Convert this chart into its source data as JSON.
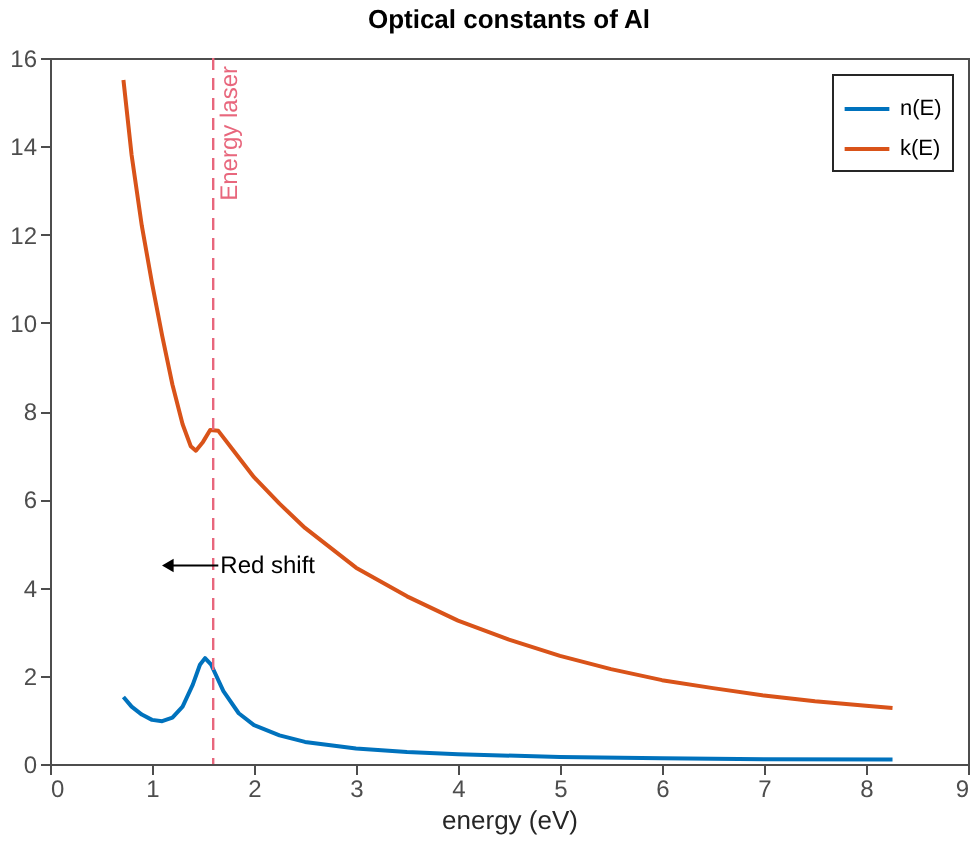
{
  "chart_data": {
    "type": "line",
    "title": "Optical constants of Al",
    "xlabel": "energy (eV)",
    "xlim": [
      0,
      9
    ],
    "xticks": [
      0,
      1,
      2,
      3,
      4,
      5,
      6,
      7,
      8,
      9
    ],
    "ylim": [
      0,
      16
    ],
    "yticks": [
      0,
      2,
      4,
      6,
      8,
      10,
      12,
      14,
      16
    ],
    "grid": false,
    "legend": "top right",
    "marker": "none",
    "line_style": "solid",
    "series": [
      {
        "name": "n(E)",
        "color": "#0072bd",
        "x": [
          0.72,
          0.8,
          0.9,
          1.0,
          1.1,
          1.2,
          1.3,
          1.4,
          1.47,
          1.52,
          1.58,
          1.7,
          1.85,
          2.0,
          2.25,
          2.5,
          3.0,
          3.5,
          4.0,
          5.0,
          6.0,
          7.0,
          8.26
        ],
        "values": [
          1.52,
          1.3,
          1.12,
          1.0,
          0.97,
          1.05,
          1.3,
          1.8,
          2.25,
          2.4,
          2.25,
          1.65,
          1.15,
          0.88,
          0.65,
          0.5,
          0.35,
          0.27,
          0.22,
          0.16,
          0.13,
          0.11,
          0.1
        ]
      },
      {
        "name": "k(E)",
        "color": "#d95319",
        "x": [
          0.72,
          0.8,
          0.9,
          1.0,
          1.1,
          1.2,
          1.3,
          1.38,
          1.43,
          1.5,
          1.57,
          1.65,
          1.8,
          2.0,
          2.25,
          2.5,
          3.0,
          3.5,
          4.0,
          4.5,
          5.0,
          5.5,
          6.0,
          6.5,
          7.0,
          7.5,
          8.0,
          8.26
        ],
        "values": [
          15.5,
          13.8,
          12.2,
          10.9,
          9.7,
          8.6,
          7.7,
          7.2,
          7.1,
          7.3,
          7.57,
          7.55,
          7.1,
          6.5,
          5.9,
          5.35,
          4.45,
          3.8,
          3.25,
          2.82,
          2.45,
          2.15,
          1.9,
          1.72,
          1.55,
          1.42,
          1.32,
          1.27
        ]
      }
    ],
    "ref_lines": [
      {
        "axis": "x",
        "value": 1.6,
        "label": "Energy laser",
        "color": "#e8677d",
        "line_style": "dashed"
      }
    ],
    "annotations": [
      {
        "text": "Red shift",
        "x": 1.65,
        "y": 4.5
      }
    ]
  }
}
